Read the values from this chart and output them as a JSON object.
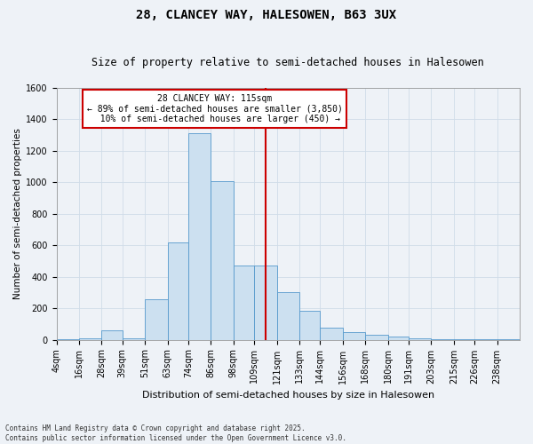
{
  "title": "28, CLANCEY WAY, HALESOWEN, B63 3UX",
  "subtitle": "Size of property relative to semi-detached houses in Halesowen",
  "xlabel": "Distribution of semi-detached houses by size in Halesowen",
  "ylabel": "Number of semi-detached properties",
  "footer_line1": "Contains HM Land Registry data © Crown copyright and database right 2025.",
  "footer_line2": "Contains public sector information licensed under the Open Government Licence v3.0.",
  "property_label": "28 CLANCEY WAY: 115sqm",
  "pct_smaller": 89,
  "count_smaller": 3850,
  "pct_larger": 10,
  "count_larger": 450,
  "bin_labels": [
    "4sqm",
    "16sqm",
    "28sqm",
    "39sqm",
    "51sqm",
    "63sqm",
    "74sqm",
    "86sqm",
    "98sqm",
    "109sqm",
    "121sqm",
    "133sqm",
    "144sqm",
    "156sqm",
    "168sqm",
    "180sqm",
    "191sqm",
    "203sqm",
    "215sqm",
    "226sqm",
    "238sqm"
  ],
  "bin_edges": [
    4,
    16,
    28,
    39,
    51,
    63,
    74,
    86,
    98,
    109,
    121,
    133,
    144,
    156,
    168,
    180,
    191,
    203,
    215,
    226,
    238,
    250
  ],
  "bar_heights": [
    5,
    10,
    60,
    10,
    255,
    620,
    1310,
    1010,
    470,
    470,
    300,
    185,
    75,
    50,
    30,
    20,
    10,
    5,
    2,
    1,
    1
  ],
  "bar_color": "#cce0f0",
  "bar_edge_color": "#5599cc",
  "vline_x": 115,
  "vline_color": "#cc0000",
  "annotation_box_color": "#cc0000",
  "grid_color": "#d0dce8",
  "background_color": "#eef2f7",
  "ylim": [
    0,
    1600
  ],
  "yticks": [
    0,
    200,
    400,
    600,
    800,
    1000,
    1200,
    1400,
    1600
  ],
  "title_fontsize": 10,
  "subtitle_fontsize": 8.5,
  "ylabel_fontsize": 7.5,
  "xlabel_fontsize": 8,
  "tick_fontsize": 7,
  "annot_fontsize": 7,
  "footer_fontsize": 5.5
}
